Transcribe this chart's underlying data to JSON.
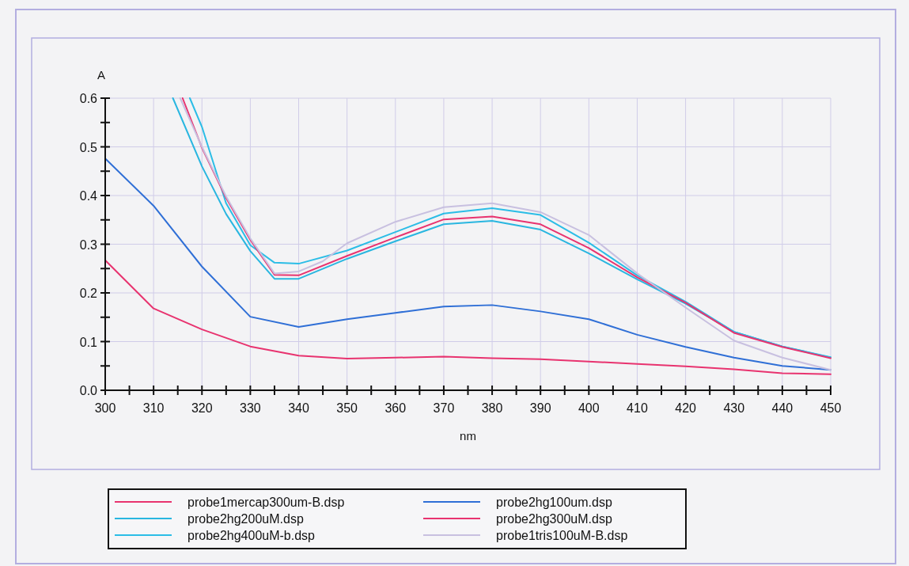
{
  "chart_data": {
    "type": "line",
    "xlabel": "nm",
    "ylabel": "A",
    "xlim": [
      300,
      450
    ],
    "ylim": [
      0,
      0.6
    ],
    "xticks": [
      300,
      {
        "value": 305,
        "label": null
      },
      310,
      {
        "value": 315,
        "label": null
      },
      320,
      {
        "value": 325,
        "label": null
      },
      330,
      {
        "value": 335,
        "label": null
      },
      340,
      {
        "value": 345,
        "label": null
      },
      350,
      {
        "value": 355,
        "label": null
      },
      360,
      {
        "value": 365,
        "label": null
      },
      370,
      {
        "value": 375,
        "label": null
      },
      380,
      {
        "value": 385,
        "label": null
      },
      390,
      {
        "value": 395,
        "label": null
      },
      400,
      {
        "value": 405,
        "label": null
      },
      410,
      {
        "value": 415,
        "label": null
      },
      420,
      {
        "value": 425,
        "label": null
      },
      430,
      {
        "value": 435,
        "label": null
      },
      440,
      {
        "value": 445,
        "label": null
      },
      450
    ],
    "yticks": [
      {
        "value": 0,
        "label": "0.0"
      },
      {
        "value": 0.05,
        "label": null
      },
      0.1,
      {
        "value": 0.15,
        "label": null
      },
      0.2,
      {
        "value": 0.25,
        "label": null
      },
      0.3,
      {
        "value": 0.35,
        "label": null
      },
      0.4,
      {
        "value": 0.45,
        "label": null
      },
      0.5,
      {
        "value": 0.55,
        "label": null
      },
      0.6
    ],
    "grid": true,
    "legend": "bottom",
    "marker": "none",
    "line_style": "solid",
    "series": [
      {
        "name": "probe1mercap300um-B.dsp",
        "color": "#e8336f",
        "x": [
          300,
          310,
          320,
          330,
          340,
          350,
          360,
          370,
          380,
          390,
          400,
          410,
          420,
          430,
          440,
          450
        ],
        "values": [
          0.267,
          0.168,
          0.125,
          0.09,
          0.071,
          0.065,
          0.067,
          0.069,
          0.066,
          0.064,
          0.059,
          0.054,
          0.049,
          0.043,
          0.035,
          0.033
        ]
      },
      {
        "name": "probe2hg200uM.dsp",
        "color": "#29b6e0",
        "x": [
          314,
          320,
          325,
          330,
          335,
          340,
          350,
          360,
          370,
          380,
          390,
          400,
          410,
          420,
          430,
          440,
          450
        ],
        "values": [
          0.6,
          0.46,
          0.362,
          0.286,
          0.229,
          0.229,
          0.27,
          0.306,
          0.341,
          0.348,
          0.33,
          0.281,
          0.228,
          0.178,
          0.12,
          0.09,
          0.067
        ]
      },
      {
        "name": "probe2hg400uM-b.dsp",
        "color": "#2bbde6",
        "x": [
          317.5,
          320,
          325,
          330,
          335,
          340,
          350,
          360,
          370,
          380,
          390,
          400,
          410,
          420,
          430,
          440,
          450
        ],
        "values": [
          0.6,
          0.541,
          0.384,
          0.298,
          0.262,
          0.26,
          0.287,
          0.325,
          0.363,
          0.374,
          0.36,
          0.303,
          0.236,
          0.182,
          0.12,
          0.09,
          0.068
        ]
      },
      {
        "name": "probe2hg100um.dsp",
        "color": "#2f6fd6",
        "x": [
          300,
          310,
          320,
          330,
          340,
          350,
          360,
          370,
          380,
          390,
          400,
          410,
          420,
          430,
          440,
          450
        ],
        "values": [
          0.476,
          0.379,
          0.254,
          0.151,
          0.13,
          0.146,
          0.159,
          0.172,
          0.175,
          0.162,
          0.146,
          0.114,
          0.089,
          0.067,
          0.05,
          0.042
        ]
      },
      {
        "name": "probe2hg300uM.dsp",
        "color": "#e8336f",
        "x": [
          316,
          320,
          325,
          330,
          335,
          340,
          350,
          360,
          370,
          380,
          390,
          400,
          410,
          420,
          430,
          440,
          450
        ],
        "values": [
          0.6,
          0.498,
          0.395,
          0.309,
          0.237,
          0.236,
          0.276,
          0.314,
          0.351,
          0.357,
          0.341,
          0.292,
          0.232,
          0.18,
          0.118,
          0.089,
          0.066
        ]
      },
      {
        "name": "probe1tris100uM-B.dsp",
        "color": "#c8c0e0",
        "x": [
          315.5,
          320,
          325,
          330,
          335,
          340,
          345,
          350,
          360,
          370,
          380,
          390,
          400,
          410,
          420,
          430,
          440,
          450
        ],
        "values": [
          0.6,
          0.5,
          0.398,
          0.312,
          0.24,
          0.244,
          0.265,
          0.302,
          0.346,
          0.376,
          0.384,
          0.366,
          0.319,
          0.24,
          0.17,
          0.102,
          0.067,
          0.042
        ]
      }
    ]
  }
}
